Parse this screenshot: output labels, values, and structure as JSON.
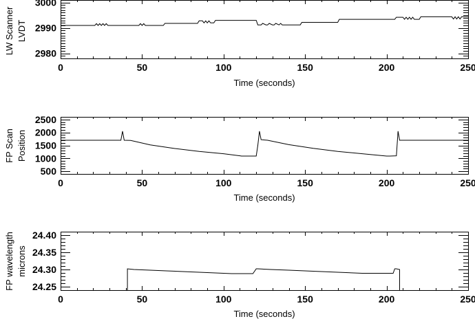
{
  "chart_data": [
    {
      "type": "line",
      "title": "",
      "ylabel": "LW Scanner LVDT",
      "ylabel_lines": [
        "LW Scanner",
        "LVDT"
      ],
      "xlabel": "Time (seconds)",
      "xlim": [
        0,
        250
      ],
      "ylim": [
        2978,
        3001
      ],
      "xticks": [
        0,
        50,
        100,
        150,
        200,
        250
      ],
      "xtick_labels": [
        "0",
        "50",
        "100",
        "150",
        "200",
        "250"
      ],
      "yticks": [
        2980,
        2990,
        3000
      ],
      "ytick_labels": [
        "2980",
        "2990",
        "3000"
      ],
      "grid": false,
      "series": [
        {
          "name": "LW Scanner LVDT",
          "x": [
            0,
            21,
            22,
            23,
            24,
            25,
            26,
            27,
            28,
            29,
            48,
            49,
            50,
            51,
            52,
            53,
            63,
            64,
            84,
            85,
            87,
            88,
            89,
            90,
            91,
            92,
            94,
            95,
            120,
            121,
            123,
            124,
            126,
            127,
            128,
            130,
            131,
            132,
            134,
            135,
            136,
            147,
            148,
            170,
            171,
            205,
            206,
            210,
            211,
            212,
            213,
            214,
            215,
            216,
            217,
            218,
            220,
            221,
            240,
            241,
            242,
            243,
            244,
            245,
            246,
            250
          ],
          "y": [
            2991,
            2991,
            2991.7,
            2991,
            2991.7,
            2991,
            2991.7,
            2991,
            2991.7,
            2991,
            2991,
            2991.7,
            2991,
            2991.7,
            2991,
            2991,
            2991,
            2991.8,
            2991.8,
            2992.8,
            2992.8,
            2992,
            2992.8,
            2992,
            2992.8,
            2992,
            2992,
            2993,
            2993,
            2991.2,
            2991.2,
            2991.8,
            2991.2,
            2991.2,
            2991.8,
            2991.2,
            2991.2,
            2991.8,
            2991.2,
            2991.8,
            2991.2,
            2991.2,
            2992.2,
            2992.2,
            2993.4,
            2993.4,
            2994.2,
            2994.2,
            2993.4,
            2994.2,
            2993.4,
            2994.2,
            2993.4,
            2994.2,
            2993.4,
            2993.4,
            2993.4,
            2994.4,
            2994.4,
            2993.5,
            2994.4,
            2993.5,
            2994.4,
            2993.5,
            2994.4,
            2994.4
          ]
        }
      ]
    },
    {
      "type": "line",
      "title": "",
      "ylabel": "FP Scan Position",
      "ylabel_lines": [
        "FP Scan",
        "Position"
      ],
      "xlabel": "Time (seconds)",
      "xlim": [
        0,
        250
      ],
      "ylim": [
        400,
        2600
      ],
      "xticks": [
        0,
        50,
        100,
        150,
        200,
        250
      ],
      "xtick_labels": [
        "0",
        "50",
        "100",
        "150",
        "200",
        "250"
      ],
      "yticks": [
        500,
        1000,
        1500,
        2000,
        2500
      ],
      "ytick_labels": [
        "500",
        "1000",
        "1500",
        "2000",
        "2500"
      ],
      "grid": false,
      "series": [
        {
          "name": "FP Scan Position",
          "x": [
            0,
            37,
            38,
            39,
            43,
            55,
            70,
            85,
            100,
            110,
            111,
            120,
            121,
            122,
            123,
            127,
            140,
            155,
            170,
            190,
            200,
            202,
            206,
            207,
            208,
            209,
            250
          ],
          "y": [
            1700,
            1700,
            2050,
            1700,
            1690,
            1520,
            1380,
            1270,
            1180,
            1100,
            1090,
            1090,
            1500,
            2050,
            1720,
            1700,
            1530,
            1390,
            1270,
            1150,
            1090,
            1090,
            1100,
            2050,
            1700,
            1700,
            1700
          ]
        }
      ]
    },
    {
      "type": "line",
      "title": "",
      "ylabel": "FP wavelength microns",
      "ylabel_lines": [
        "FP wavelength",
        "microns"
      ],
      "xlabel": "Time (seconds)",
      "xlim": [
        0,
        250
      ],
      "ylim": [
        24.24,
        24.41
      ],
      "xticks": [
        0,
        50,
        100,
        150,
        200,
        250
      ],
      "xtick_labels": [
        "0",
        "50",
        "100",
        "150",
        "200",
        "250"
      ],
      "yticks": [
        24.25,
        24.3,
        24.35,
        24.4
      ],
      "ytick_labels": [
        "24.25",
        "24.30",
        "24.35",
        "24.40"
      ],
      "grid": false,
      "series": [
        {
          "name": "FP wavelength",
          "x": [
            41,
            41,
            45,
            55,
            65,
            75,
            85,
            95,
            105,
            118,
            119,
            120,
            121,
            129,
            140,
            155,
            170,
            185,
            204,
            205,
            206,
            208,
            208
          ],
          "y": [
            24.24,
            24.302,
            24.3,
            24.298,
            24.296,
            24.294,
            24.292,
            24.29,
            24.288,
            24.288,
            24.295,
            24.302,
            24.302,
            24.3,
            24.298,
            24.295,
            24.292,
            24.289,
            24.289,
            24.302,
            24.302,
            24.3,
            24.24
          ]
        }
      ]
    }
  ],
  "panels": [
    {
      "ylabel_line1": "LW Scanner",
      "ylabel_line2": "LVDT",
      "xlabel": "Time (seconds)"
    },
    {
      "ylabel_line1": "FP Scan",
      "ylabel_line2": "Position",
      "xlabel": "Time (seconds)"
    },
    {
      "ylabel_line1": "FP wavelength",
      "ylabel_line2": "microns",
      "xlabel": "Time (seconds)"
    }
  ]
}
